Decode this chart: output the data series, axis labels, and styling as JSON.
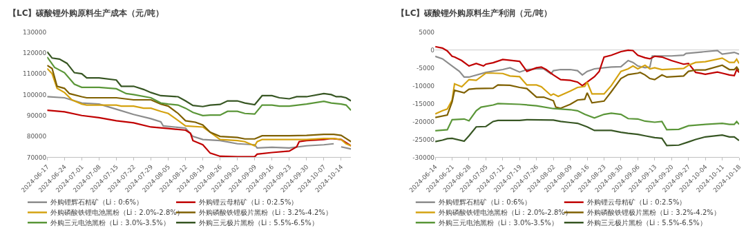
{
  "chart_data": [
    {
      "type": "line",
      "title": "【LC】碳酸锂外购原料生产成本（元/吨）",
      "legend": "bottom",
      "xlim": [
        "2024-06-17",
        "2024-10-18"
      ],
      "xticks": [
        "2024-06-17",
        "2024-06-24",
        "2024-07-01",
        "2024-07-08",
        "2024-07-15",
        "2024-07-22",
        "2024-07-29",
        "2024-08-05",
        "2024-08-12",
        "2024-08-19",
        "2024-08-26",
        "2024-09-02",
        "2024-09-09",
        "2024-09-16",
        "2024-09-23",
        "2024-09-30",
        "2024-10-07",
        "2024-10-14"
      ],
      "ylim": [
        70000,
        130000
      ],
      "yticks": [
        70000,
        80000,
        90000,
        100000,
        110000,
        120000,
        130000
      ],
      "series": [
        {
          "name": "外购锂辉石精矿（Li：0:6%）",
          "color": "#8c8c8c",
          "x": [
            "2024-06-17",
            "2024-06-24",
            "2024-07-01",
            "2024-07-08",
            "2024-07-15",
            "2024-07-22",
            "2024-07-29",
            "2024-08-02",
            "2024-08-03",
            "2024-08-05",
            "2024-08-12",
            "2024-08-15",
            "2024-08-19",
            "2024-08-26",
            "2024-09-02",
            "2024-09-09",
            "2024-09-10",
            "2024-09-16",
            "2024-09-23",
            "2024-09-30",
            "2024-10-07",
            "2024-10-11",
            "2024-10-12",
            "2024-10-14",
            "2024-10-18"
          ],
          "values": [
            99000,
            98500,
            96000,
            95500,
            93000,
            90500,
            88500,
            87000,
            85000,
            84800,
            84000,
            80000,
            78500,
            78000,
            76500,
            76000,
            74500,
            74800,
            74500,
            75500,
            76000,
            76500,
            null,
            75000,
            74000
          ]
        },
        {
          "name": "外购锂云母精矿（Li：0:2.5%）",
          "color": "#c00000",
          "x": [
            "2024-06-17",
            "2024-06-24",
            "2024-07-01",
            "2024-07-08",
            "2024-07-15",
            "2024-07-22",
            "2024-07-29",
            "2024-08-05",
            "2024-08-12",
            "2024-08-14",
            "2024-08-15",
            "2024-08-19",
            "2024-08-22",
            "2024-08-26",
            "2024-09-02",
            "2024-09-09",
            "2024-09-10",
            "2024-09-16",
            "2024-09-23",
            "2024-09-26",
            "2024-09-27",
            "2024-09-30",
            "2024-10-07",
            "2024-10-10",
            "2024-10-14",
            "2024-10-16",
            "2024-10-18"
          ],
          "values": [
            92500,
            91800,
            90000,
            89000,
            87500,
            86500,
            84500,
            83800,
            83000,
            81500,
            78000,
            76000,
            72000,
            70500,
            70300,
            70300,
            71500,
            72300,
            73000,
            75000,
            77500,
            78000,
            78500,
            79000,
            78500,
            77000,
            75500
          ]
        },
        {
          "name": "外购磷酸铁锂电池黑粉（Li：2.0%-2.8%）",
          "color": "#d4a20f",
          "x": [
            "2024-06-17",
            "2024-06-19",
            "2024-06-21",
            "2024-06-24",
            "2024-06-27",
            "2024-07-01",
            "2024-07-03",
            "2024-07-08",
            "2024-07-15",
            "2024-07-17",
            "2024-07-22",
            "2024-07-26",
            "2024-07-29",
            "2024-08-02",
            "2024-08-05",
            "2024-08-08",
            "2024-08-12",
            "2024-08-19",
            "2024-08-22",
            "2024-08-26",
            "2024-09-02",
            "2024-09-05",
            "2024-09-09",
            "2024-09-10",
            "2024-09-12",
            "2024-09-23",
            "2024-09-30",
            "2024-10-07",
            "2024-10-11",
            "2024-10-14",
            "2024-10-16",
            "2024-10-18"
          ],
          "values": [
            112500,
            110000,
            103000,
            101000,
            97500,
            95500,
            95000,
            95000,
            95000,
            94500,
            94500,
            93500,
            93500,
            92000,
            91000,
            88500,
            85000,
            84500,
            82000,
            78500,
            78000,
            77500,
            75500,
            77500,
            78500,
            78500,
            78500,
            79000,
            79000,
            78500,
            76500,
            75500
          ]
        },
        {
          "name": "外购磷酸铁锂极片黑粉（Li：3.2%-4.2%）",
          "color": "#7f6000",
          "x": [
            "2024-06-17",
            "2024-06-19",
            "2024-06-21",
            "2024-06-24",
            "2024-06-26",
            "2024-07-01",
            "2024-07-03",
            "2024-07-08",
            "2024-07-15",
            "2024-07-22",
            "2024-07-29",
            "2024-08-02",
            "2024-08-05",
            "2024-08-09",
            "2024-08-12",
            "2024-08-16",
            "2024-08-19",
            "2024-08-22",
            "2024-08-26",
            "2024-09-02",
            "2024-09-05",
            "2024-09-09",
            "2024-09-12",
            "2024-09-23",
            "2024-09-30",
            "2024-10-07",
            "2024-10-11",
            "2024-10-14",
            "2024-10-16",
            "2024-10-18"
          ],
          "values": [
            114000,
            112500,
            104000,
            103000,
            100500,
            99000,
            98500,
            98500,
            98500,
            97500,
            97500,
            95500,
            94500,
            91000,
            87500,
            86800,
            85500,
            82000,
            80000,
            79500,
            78800,
            78800,
            80300,
            80300,
            80500,
            81000,
            81000,
            80500,
            79000,
            77500
          ]
        },
        {
          "name": "外购三元电池黑粉（Li：3.0%-3.5%）",
          "color": "#5a9638",
          "x": [
            "2024-06-17",
            "2024-06-20",
            "2024-06-24",
            "2024-06-28",
            "2024-07-01",
            "2024-07-08",
            "2024-07-15",
            "2024-07-19",
            "2024-07-22",
            "2024-07-29",
            "2024-08-02",
            "2024-08-05",
            "2024-08-09",
            "2024-08-12",
            "2024-08-15",
            "2024-08-19",
            "2024-08-22",
            "2024-08-26",
            "2024-08-29",
            "2024-09-02",
            "2024-09-05",
            "2024-09-09",
            "2024-09-12",
            "2024-09-16",
            "2024-09-19",
            "2024-09-23",
            "2024-09-30",
            "2024-10-07",
            "2024-10-10",
            "2024-10-14",
            "2024-10-16",
            "2024-10-18"
          ],
          "values": [
            118000,
            113000,
            110500,
            105000,
            103500,
            103500,
            102800,
            100500,
            100000,
            98500,
            96000,
            95500,
            95000,
            93500,
            91500,
            90000,
            90200,
            90200,
            92000,
            92000,
            91000,
            90700,
            95000,
            95000,
            94500,
            94500,
            95500,
            96800,
            96000,
            95500,
            95000,
            92500
          ]
        },
        {
          "name": "外购三元极片黑粉（Li：5.5%-6.5%）",
          "color": "#375623",
          "x": [
            "2024-06-17",
            "2024-06-19",
            "2024-06-22",
            "2024-06-25",
            "2024-06-28",
            "2024-07-01",
            "2024-07-03",
            "2024-07-08",
            "2024-07-15",
            "2024-07-17",
            "2024-07-22",
            "2024-07-26",
            "2024-07-29",
            "2024-08-02",
            "2024-08-09",
            "2024-08-12",
            "2024-08-15",
            "2024-08-19",
            "2024-08-22",
            "2024-08-26",
            "2024-08-29",
            "2024-09-02",
            "2024-09-05",
            "2024-09-09",
            "2024-09-12",
            "2024-09-16",
            "2024-09-19",
            "2024-09-23",
            "2024-09-26",
            "2024-09-30",
            "2024-10-07",
            "2024-10-10",
            "2024-10-12",
            "2024-10-14",
            "2024-10-16",
            "2024-10-18"
          ],
          "values": [
            120500,
            117500,
            117000,
            115000,
            110500,
            110000,
            108000,
            108000,
            107000,
            104000,
            104000,
            102500,
            101000,
            99500,
            99000,
            97000,
            94800,
            94300,
            95000,
            95300,
            97000,
            97000,
            96000,
            95200,
            99500,
            99500,
            98500,
            98000,
            99000,
            99000,
            100500,
            100000,
            99000,
            99000,
            98500,
            97000
          ]
        }
      ]
    },
    {
      "type": "line",
      "title": "【LC】碳酸锂外购原料生产利润（元/吨）",
      "legend": "bottom",
      "xlim": [
        "2024-06-14",
        "2024-10-18"
      ],
      "xticks": [
        "2024-06-14",
        "2024-06-21",
        "2024-06-28",
        "2024-07-05",
        "2024-07-12",
        "2024-07-19",
        "2024-07-26",
        "2024-08-02",
        "2024-08-09",
        "2024-08-16",
        "2024-08-23",
        "2024-08-30",
        "2024-09-06",
        "2024-09-13",
        "2024-09-20",
        "2024-09-27",
        "2024-10-04",
        "2024-10-11",
        "2024-10-18"
      ],
      "ylim": [
        -30000,
        5000
      ],
      "yticks": [
        -30000,
        -25000,
        -20000,
        -15000,
        -10000,
        -5000,
        0,
        5000
      ],
      "ref_lines": [
        {
          "axis": "y",
          "value": 0,
          "color": "#d9d9d9"
        }
      ],
      "series": [
        {
          "name": "外购锂辉石精矿（Li：0:6%）",
          "color": "#8c8c8c",
          "x": [
            "2024-06-14",
            "2024-06-17",
            "2024-06-21",
            "2024-06-24",
            "2024-06-26",
            "2024-06-28",
            "2024-07-05",
            "2024-07-12",
            "2024-07-15",
            "2024-07-19",
            "2024-07-22",
            "2024-07-26",
            "2024-07-29",
            "2024-08-01",
            "2024-08-02",
            "2024-08-05",
            "2024-08-09",
            "2024-08-12",
            "2024-08-14",
            "2024-08-16",
            "2024-08-19",
            "2024-08-23",
            "2024-08-26",
            "2024-08-30",
            "2024-09-02",
            "2024-09-04",
            "2024-09-06",
            "2024-09-09",
            "2024-09-11",
            "2024-09-12",
            "2024-09-20",
            "2024-09-25",
            "2024-09-26",
            "2024-10-04",
            "2024-10-09",
            "2024-10-11",
            "2024-10-16",
            "2024-10-18"
          ],
          "values": [
            -1800,
            -2500,
            -4500,
            -6000,
            -7600,
            -7600,
            -6300,
            -5500,
            -5000,
            -6200,
            -5500,
            -5300,
            -5300,
            -6700,
            -5800,
            -5500,
            -5500,
            -5800,
            -7000,
            -6000,
            -5300,
            -5000,
            -4800,
            -4700,
            -3000,
            -3500,
            -4500,
            -5000,
            -4800,
            -1700,
            -1700,
            -1500,
            -1000,
            -500,
            -200,
            -1200,
            -700,
            -1200
          ]
        },
        {
          "name": "外购锂云母精矿（Li：0:2.5%）",
          "color": "#c00000",
          "x": [
            "2024-06-14",
            "2024-06-17",
            "2024-06-19",
            "2024-06-21",
            "2024-06-22",
            "2024-06-25",
            "2024-06-28",
            "2024-07-01",
            "2024-07-04",
            "2024-07-05",
            "2024-07-08",
            "2024-07-12",
            "2024-07-19",
            "2024-07-22",
            "2024-07-26",
            "2024-07-28",
            "2024-07-30",
            "2024-08-02",
            "2024-08-05",
            "2024-08-09",
            "2024-08-12",
            "2024-08-14",
            "2024-08-16",
            "2024-08-19",
            "2024-08-21",
            "2024-08-23",
            "2024-08-26",
            "2024-08-30",
            "2024-09-02",
            "2024-09-04",
            "2024-09-06",
            "2024-09-09",
            "2024-09-11",
            "2024-09-13",
            "2024-09-16",
            "2024-09-20",
            "2024-09-25",
            "2024-09-27",
            "2024-09-30",
            "2024-10-04",
            "2024-10-09",
            "2024-10-11",
            "2024-10-14",
            "2024-10-16",
            "2024-10-17",
            "2024-10-18"
          ],
          "values": [
            900,
            500,
            -300,
            -1800,
            -2000,
            -3000,
            -4500,
            -3800,
            -4500,
            -4000,
            -3600,
            -2700,
            -3200,
            -6000,
            -5000,
            -4800,
            -5500,
            -7000,
            -8300,
            -8500,
            -9000,
            -10000,
            -9000,
            -7500,
            -6000,
            -2000,
            -1500,
            -500,
            -100,
            -200,
            -1500,
            -2200,
            -2500,
            -1800,
            -2000,
            -3000,
            -4000,
            -3800,
            -6300,
            -6800,
            -6200,
            -6500,
            -7000,
            -7200,
            -5500,
            -6300
          ]
        },
        {
          "name": "外购磷酸铁锂电池黑粉（Li：2.0%-2.8%）",
          "color": "#d4a20f",
          "x": [
            "2024-06-14",
            "2024-06-17",
            "2024-06-19",
            "2024-06-21",
            "2024-06-22",
            "2024-06-25",
            "2024-06-28",
            "2024-07-01",
            "2024-07-05",
            "2024-07-08",
            "2024-07-12",
            "2024-07-15",
            "2024-07-19",
            "2024-07-22",
            "2024-07-26",
            "2024-07-28",
            "2024-08-01",
            "2024-08-02",
            "2024-08-04",
            "2024-08-09",
            "2024-08-12",
            "2024-08-15",
            "2024-08-16",
            "2024-08-18",
            "2024-08-23",
            "2024-08-26",
            "2024-08-30",
            "2024-09-02",
            "2024-09-04",
            "2024-09-06",
            "2024-09-09",
            "2024-09-11",
            "2024-09-13",
            "2024-09-16",
            "2024-09-25",
            "2024-09-27",
            "2024-09-30",
            "2024-10-04",
            "2024-10-11",
            "2024-10-14",
            "2024-10-16",
            "2024-10-17",
            "2024-10-18"
          ],
          "values": [
            -17900,
            -17000,
            -16500,
            -14000,
            -9500,
            -10300,
            -8300,
            -8500,
            -6500,
            -6500,
            -6600,
            -7300,
            -7500,
            -9800,
            -9800,
            -10300,
            -12700,
            -12300,
            -13000,
            -11500,
            -10500,
            -10200,
            -9000,
            -12300,
            -12300,
            -10000,
            -6000,
            -5300,
            -4500,
            -5300,
            -4300,
            -5300,
            -5000,
            -5500,
            -5200,
            -4300,
            -3500,
            -3300,
            -2300,
            -3500,
            -3500,
            -2600,
            -3800
          ]
        },
        {
          "name": "外购磷酸铁锂极片黑粉（Li：3.2%-4.2%）",
          "color": "#7f6000",
          "x": [
            "2024-06-14",
            "2024-06-19",
            "2024-06-21",
            "2024-06-22",
            "2024-06-26",
            "2024-06-28",
            "2024-07-01",
            "2024-07-08",
            "2024-07-10",
            "2024-07-15",
            "2024-07-19",
            "2024-07-22",
            "2024-07-26",
            "2024-07-29",
            "2024-08-02",
            "2024-08-03",
            "2024-08-05",
            "2024-08-09",
            "2024-08-12",
            "2024-08-15",
            "2024-08-16",
            "2024-08-18",
            "2024-08-23",
            "2024-08-26",
            "2024-08-30",
            "2024-09-02",
            "2024-09-06",
            "2024-09-07",
            "2024-09-09",
            "2024-09-11",
            "2024-09-13",
            "2024-09-16",
            "2024-09-18",
            "2024-09-25",
            "2024-09-27",
            "2024-09-30",
            "2024-10-04",
            "2024-10-11",
            "2024-10-14",
            "2024-10-16",
            "2024-10-17",
            "2024-10-18"
          ],
          "values": [
            -18900,
            -18200,
            -14500,
            -11300,
            -12000,
            -11000,
            -10800,
            -10700,
            -9800,
            -9900,
            -10500,
            -10800,
            -13200,
            -13200,
            -14200,
            -16000,
            -16300,
            -15200,
            -14000,
            -13800,
            -12000,
            -14800,
            -14300,
            -11700,
            -8000,
            -6900,
            -6500,
            -6300,
            -7000,
            -8000,
            -8300,
            -7000,
            -7600,
            -7300,
            -6000,
            -5600,
            -5600,
            -4300,
            -5500,
            -5500,
            -4800,
            -5800
          ]
        },
        {
          "name": "外购三元电池黑粉（Li：3.0%-3.5%）",
          "color": "#5a9638",
          "x": [
            "2024-06-14",
            "2024-06-19",
            "2024-06-21",
            "2024-06-26",
            "2024-06-28",
            "2024-07-01",
            "2024-07-03",
            "2024-07-08",
            "2024-07-10",
            "2024-07-19",
            "2024-07-26",
            "2024-08-02",
            "2024-08-09",
            "2024-08-12",
            "2024-08-15",
            "2024-08-19",
            "2024-08-23",
            "2024-08-26",
            "2024-08-30",
            "2024-09-02",
            "2024-09-06",
            "2024-09-09",
            "2024-09-13",
            "2024-09-16",
            "2024-09-18",
            "2024-09-23",
            "2024-09-27",
            "2024-10-04",
            "2024-10-11",
            "2024-10-14",
            "2024-10-16",
            "2024-10-17",
            "2024-10-18"
          ],
          "values": [
            -22600,
            -22300,
            -19500,
            -19300,
            -19800,
            -17000,
            -16000,
            -15400,
            -15000,
            -15200,
            -15600,
            -16400,
            -16700,
            -17000,
            -18000,
            -19000,
            -18000,
            -17700,
            -18000,
            -19200,
            -19300,
            -19900,
            -20200,
            -20000,
            -22300,
            -22200,
            -21200,
            -20800,
            -20500,
            -20800,
            -20800,
            -20000,
            -20800
          ]
        },
        {
          "name": "外购三元极片黑粉（Li：5.5%-6.5%）",
          "color": "#375623",
          "x": [
            "2024-06-14",
            "2024-06-17",
            "2024-06-19",
            "2024-06-21",
            "2024-06-26",
            "2024-06-28",
            "2024-07-01",
            "2024-07-05",
            "2024-07-08",
            "2024-07-10",
            "2024-07-19",
            "2024-07-22",
            "2024-08-02",
            "2024-08-05",
            "2024-08-09",
            "2024-08-12",
            "2024-08-16",
            "2024-08-19",
            "2024-08-23",
            "2024-08-26",
            "2024-08-30",
            "2024-09-02",
            "2024-09-06",
            "2024-09-09",
            "2024-09-13",
            "2024-09-16",
            "2024-09-18",
            "2024-09-23",
            "2024-09-27",
            "2024-09-30",
            "2024-10-04",
            "2024-10-11",
            "2024-10-14",
            "2024-10-16",
            "2024-10-18"
          ],
          "values": [
            -25600,
            -25200,
            -24800,
            -24700,
            -25500,
            -24000,
            -21500,
            -21400,
            -20000,
            -19700,
            -19700,
            -19500,
            -19600,
            -20000,
            -20300,
            -20500,
            -21500,
            -22500,
            -22500,
            -22500,
            -23000,
            -23300,
            -23600,
            -24000,
            -24500,
            -24700,
            -26700,
            -26600,
            -25700,
            -25000,
            -24300,
            -23800,
            -24300,
            -24300,
            -25300
          ]
        }
      ]
    }
  ]
}
